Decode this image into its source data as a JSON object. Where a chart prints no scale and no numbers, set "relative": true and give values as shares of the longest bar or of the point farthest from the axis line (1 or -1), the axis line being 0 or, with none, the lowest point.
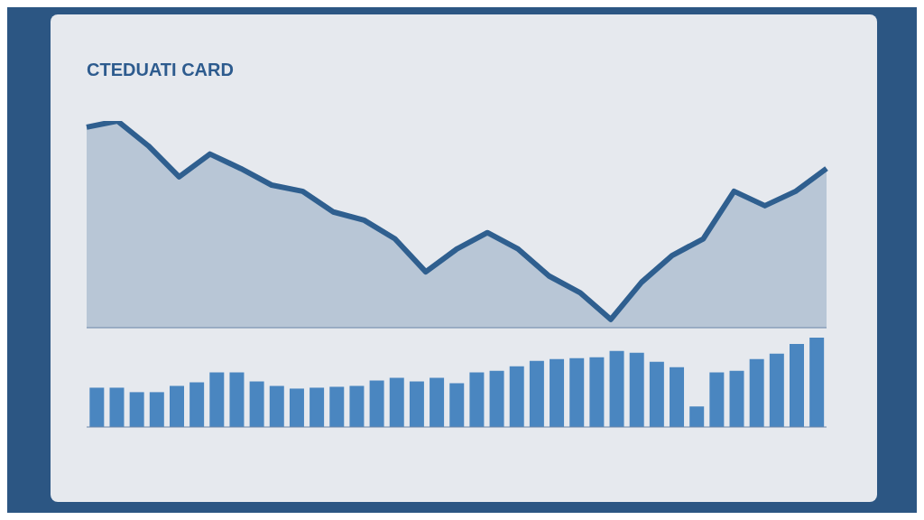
{
  "chart_data": [
    {
      "type": "area",
      "title": "CTEDUATI CARD",
      "relative": true,
      "tick_labels": false,
      "categories": [
        null,
        null,
        null,
        null,
        null,
        null,
        null,
        null,
        null,
        null,
        null,
        null,
        null,
        null,
        null,
        null,
        null,
        null,
        null,
        null,
        null,
        null,
        null,
        null,
        null
      ],
      "series": [
        {
          "color": "#2f5f8f",
          "values": [
            0.97,
            1,
            0.88,
            0.73,
            0.84,
            0.77,
            0.69,
            0.66,
            0.56,
            0.52,
            0.43,
            0.27,
            0.38,
            0.46,
            0.38,
            0.25,
            0.17,
            0.04,
            0.22,
            0.35,
            0.43,
            0.66,
            0.59,
            0.66,
            0.77
          ]
        }
      ]
    },
    {
      "type": "bar",
      "relative": true,
      "tick_labels": false,
      "categories": [
        null,
        null,
        null,
        null,
        null,
        null,
        null,
        null,
        null,
        null,
        null,
        null,
        null,
        null,
        null,
        null,
        null,
        null,
        null,
        null,
        null,
        null,
        null,
        null,
        null,
        null,
        null,
        null,
        null,
        null,
        null,
        null,
        null,
        null,
        null,
        null,
        null
      ],
      "series": [
        {
          "color": "#4a86c0",
          "values": [
            0.44,
            0.44,
            0.39,
            0.39,
            0.46,
            0.5,
            0.61,
            0.61,
            0.51,
            0.46,
            0.43,
            0.44,
            0.45,
            0.46,
            0.52,
            0.55,
            0.51,
            0.55,
            0.49,
            0.61,
            0.63,
            0.68,
            0.74,
            0.76,
            0.77,
            0.78,
            0.85,
            0.83,
            0.73,
            0.67,
            0.23,
            0.61,
            0.63,
            0.76,
            0.82,
            0.93,
            1
          ]
        }
      ]
    }
  ]
}
